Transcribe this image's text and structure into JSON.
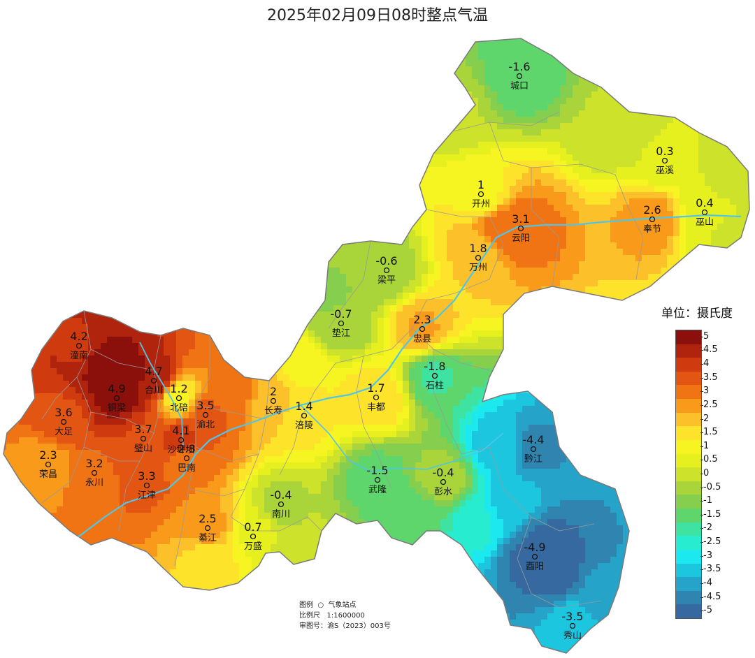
{
  "title": "2025年02月09日08时整点气温",
  "legend": {
    "unit_label": "单位：摄氏度",
    "levels": [
      {
        "label": "5",
        "color": "#8b0f0a"
      },
      {
        "label": "4.5",
        "color": "#b0230d"
      },
      {
        "label": "4",
        "color": "#cf3a0f"
      },
      {
        "label": "3.5",
        "color": "#e25512"
      },
      {
        "label": "3",
        "color": "#f07414"
      },
      {
        "label": "2.5",
        "color": "#f99a1a"
      },
      {
        "label": "2",
        "color": "#fcc02a"
      },
      {
        "label": "1.5",
        "color": "#fde32a"
      },
      {
        "label": "1",
        "color": "#f6f521"
      },
      {
        "label": "0.5",
        "color": "#e6f01f"
      },
      {
        "label": "0",
        "color": "#cde22a"
      },
      {
        "label": "-0.5",
        "color": "#a9d43a"
      },
      {
        "label": "-1",
        "color": "#86cf4e"
      },
      {
        "label": "-1.5",
        "color": "#5fd66c"
      },
      {
        "label": "-2",
        "color": "#3ee3a2"
      },
      {
        "label": "-2.5",
        "color": "#28ecd0"
      },
      {
        "label": "-3",
        "color": "#1ce8f0"
      },
      {
        "label": "-3.5",
        "color": "#1cc6df"
      },
      {
        "label": "-4",
        "color": "#26a3c9"
      },
      {
        "label": "-4.5",
        "color": "#2f85b0"
      },
      {
        "label": "-5",
        "color": "#3569a0"
      }
    ]
  },
  "info": {
    "legend_line": "图例  ○  气象站点",
    "scale_line": "比例尺   1:1600000",
    "approval_line": "审图号：渝S（2023）003号"
  },
  "stations": [
    {
      "name": "城口",
      "value": "-1.6"
    },
    {
      "name": "巫溪",
      "value": "0.3"
    },
    {
      "name": "开州",
      "value": "1"
    },
    {
      "name": "巫山",
      "value": "0.4"
    },
    {
      "name": "云阳",
      "value": "3.1"
    },
    {
      "name": "奉节",
      "value": "2.6"
    },
    {
      "name": "万州",
      "value": "1.8"
    },
    {
      "name": "梁平",
      "value": "-0.6"
    },
    {
      "name": "垫江",
      "value": "-0.7"
    },
    {
      "name": "忠县",
      "value": "2.3"
    },
    {
      "name": "潼南",
      "value": "4.2"
    },
    {
      "name": "合川",
      "value": "4.7"
    },
    {
      "name": "铜梁",
      "value": "4.9"
    },
    {
      "name": "北碚",
      "value": "1.2"
    },
    {
      "name": "渝北",
      "value": "3.5"
    },
    {
      "name": "长寿",
      "value": "2"
    },
    {
      "name": "石柱",
      "value": "-1.8"
    },
    {
      "name": "丰都",
      "value": "1.7"
    },
    {
      "name": "涪陵",
      "value": "1.4"
    },
    {
      "name": "大足",
      "value": "3.6"
    },
    {
      "name": "璧山",
      "value": "3.7"
    },
    {
      "name": "沙坪坝",
      "value": "4.1"
    },
    {
      "name": "荣昌",
      "value": "2.3"
    },
    {
      "name": "永川",
      "value": "3.2"
    },
    {
      "name": "巴南",
      "value": "2.8"
    },
    {
      "name": "江津",
      "value": "3.3"
    },
    {
      "name": "黔江",
      "value": "-4.4"
    },
    {
      "name": "武隆",
      "value": "-1.5"
    },
    {
      "name": "彭水",
      "value": "-0.4"
    },
    {
      "name": "南川",
      "value": "-0.4"
    },
    {
      "name": "綦江",
      "value": "2.5"
    },
    {
      "name": "万盛",
      "value": "0.7"
    },
    {
      "name": "酉阳",
      "value": "-4.9"
    },
    {
      "name": "秀山",
      "value": "-3.5"
    }
  ]
}
